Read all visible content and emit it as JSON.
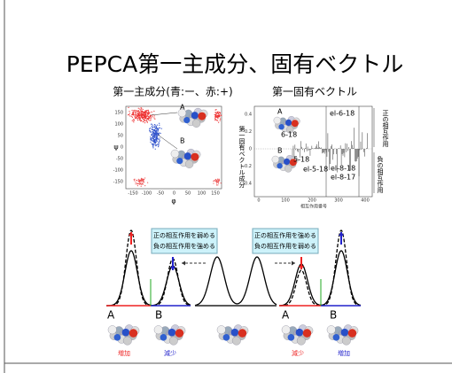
{
  "title": "PEPCA第一主成分、固有ベクトル",
  "left_panel": {
    "caption": "第一主成分(青:ー、赤:+)",
    "y_label": "ψ",
    "x_label": "φ",
    "y_ticks": [
      "150",
      "100",
      "50",
      "0",
      "-50",
      "-100",
      "-150"
    ],
    "x_ticks": [
      "-150",
      "-100",
      "-50",
      "0",
      "50",
      "100",
      "150"
    ],
    "labels": [
      "A",
      "B"
    ]
  },
  "right_panel": {
    "caption": "第一固有ベクトル",
    "y_label": "第一固有ベクトル成分",
    "y_ticks": [
      "0.4",
      "0.2",
      "0",
      "-0.2",
      "-0.4"
    ],
    "x_ticks": [
      "0",
      "100",
      "200",
      "300",
      "400"
    ],
    "x_label": "相互作用番号",
    "labels": [
      "A",
      "B"
    ],
    "annotations": [
      "el-6-18",
      "6-18",
      "5-18",
      "el-5-18",
      "el-8-18",
      "el-8-17"
    ],
    "side_labels": [
      "正の相互作用",
      "負の相互作用"
    ]
  },
  "bottom": {
    "notes": [
      [
        "正の相互作用を弱める",
        "負の相互作用を強める"
      ],
      [
        "正の相互作用を強める",
        "負の相互作用を弱める"
      ]
    ],
    "conformers": [
      [
        "A",
        "B"
      ],
      [
        "A",
        "B"
      ]
    ],
    "changes": [
      "増加",
      "減少",
      "減少",
      "増加"
    ]
  }
}
